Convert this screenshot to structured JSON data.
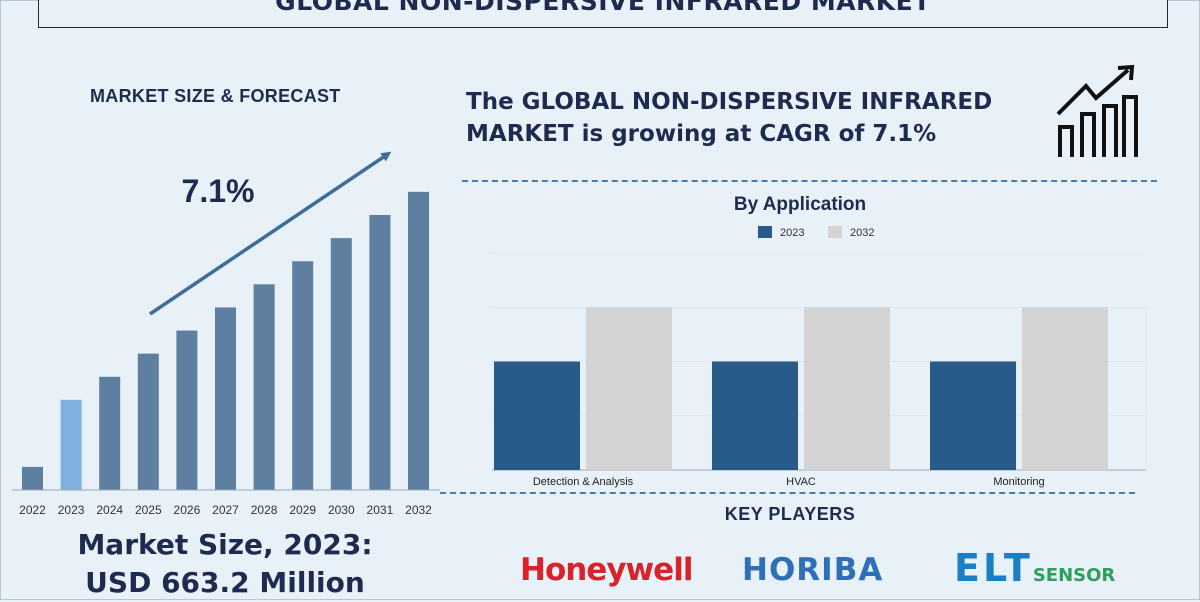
{
  "title": "GLOBAL NON-DISPERSIVE INFRARED MARKET",
  "left": {
    "subtitle": "MARKET SIZE & FORECAST",
    "cagr_label": "7.1%",
    "market_size_line1": "Market Size, 2023:",
    "market_size_line2": "USD 663.2 Million"
  },
  "headline": "The GLOBAL NON-DISPERSIVE INFRARED MARKET is growing at CAGR of 7.1%",
  "players": {
    "title": "KEY PLAYERS",
    "logos": [
      "Honeywell",
      "HORIBA",
      "ELT",
      "SENSOR"
    ]
  },
  "icons": {
    "growth": "bar-chart-growth-icon"
  },
  "colors": {
    "dark_bar": "#5f7fa0",
    "highlight_bar": "#7fb0de",
    "blue_2023": "#285a8a",
    "grey_2032": "#d3d3d3",
    "arrow": "#3f6d99"
  },
  "chart_data": [
    {
      "type": "bar",
      "title": "MARKET SIZE & FORECAST",
      "categories": [
        "2022",
        "2023",
        "2024",
        "2025",
        "2026",
        "2027",
        "2028",
        "2029",
        "2030",
        "2031",
        "2032"
      ],
      "values": [
        1.0,
        3.9,
        4.9,
        5.9,
        6.9,
        7.9,
        8.9,
        9.9,
        10.9,
        11.9,
        12.9
      ],
      "highlight_index": 1,
      "annotation": "7.1%",
      "ylim": [
        0,
        13.5
      ],
      "grid": false,
      "axis_values_shown": false
    },
    {
      "type": "bar",
      "title": "By Application",
      "categories": [
        "Detection & Analysis",
        "HVAC",
        "Monitoring"
      ],
      "series": [
        {
          "name": "2023",
          "values": [
            2,
            2,
            2
          ]
        },
        {
          "name": "2032",
          "values": [
            3,
            3,
            3
          ]
        }
      ],
      "ylim": [
        0,
        4
      ],
      "grid": true,
      "legend_position": "top-center"
    }
  ]
}
